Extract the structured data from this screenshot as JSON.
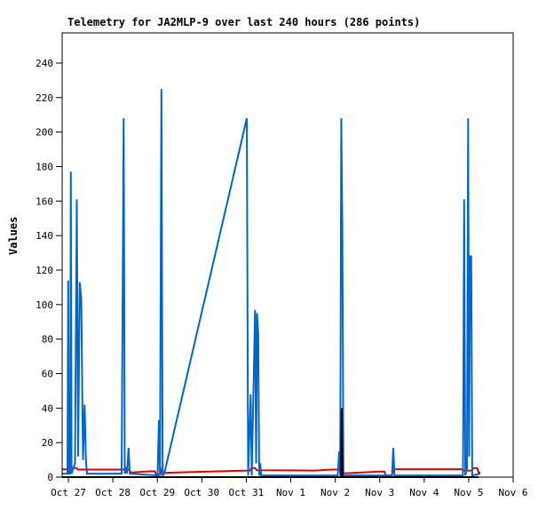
{
  "title": "Telemetry for JA2MLP-9 over last 240 hours (286 points)",
  "colors": {
    "blue_series": "#0066cc",
    "red_series": "#e60000",
    "black_series": "#000000",
    "axis": "#000000",
    "background": "#ffffff"
  },
  "chart_data": {
    "type": "line",
    "title": "Telemetry for JA2MLP-9 over last 240 hours (286 points)",
    "xlabel": "",
    "ylabel": "Values",
    "grid": false,
    "legend": "none",
    "ylim": [
      0,
      257.5
    ],
    "xlim_days": [
      -0.14,
      10.0
    ],
    "yticks": [
      0,
      20,
      40,
      60,
      80,
      100,
      120,
      140,
      160,
      180,
      200,
      220,
      240
    ],
    "xticks": [
      {
        "day": 0,
        "label": "Oct 27"
      },
      {
        "day": 1,
        "label": "Oct 28"
      },
      {
        "day": 2,
        "label": "Oct 29"
      },
      {
        "day": 3,
        "label": "Oct 30"
      },
      {
        "day": 4,
        "label": "Oct 31"
      },
      {
        "day": 5,
        "label": "Nov 1"
      },
      {
        "day": 6,
        "label": "Nov 2"
      },
      {
        "day": 7,
        "label": "Nov 3"
      },
      {
        "day": 8,
        "label": "Nov 4"
      },
      {
        "day": 9,
        "label": "Nov 5"
      },
      {
        "day": 10,
        "label": "Nov 6"
      }
    ],
    "series": [
      {
        "name": "red-series",
        "color": "#e60000",
        "width": 2,
        "points": [
          [
            -0.14,
            4.5
          ],
          [
            0.08,
            4.5
          ],
          [
            0.1,
            5.3
          ],
          [
            0.18,
            5.3
          ],
          [
            0.21,
            4.4
          ],
          [
            1.357,
            4.4
          ],
          [
            1.407,
            2.7
          ],
          [
            1.557,
            2.9
          ],
          [
            1.856,
            3.4
          ],
          [
            1.946,
            3.4
          ],
          [
            1.976,
            1.2
          ],
          [
            2.066,
            1.3
          ],
          [
            2.106,
            5.0
          ],
          [
            2.136,
            2.4
          ],
          [
            2.455,
            2.7
          ],
          [
            3.253,
            3.3
          ],
          [
            3.892,
            3.7
          ],
          [
            4.082,
            3.8
          ],
          [
            4.112,
            5.2
          ],
          [
            4.202,
            5.2
          ],
          [
            4.232,
            4.0
          ],
          [
            4.85,
            3.9
          ],
          [
            5.549,
            3.8
          ],
          [
            5.928,
            4.4
          ],
          [
            6.128,
            4.4
          ],
          [
            6.178,
            2.2
          ],
          [
            6.647,
            2.8
          ],
          [
            7.006,
            3.2
          ],
          [
            7.106,
            3.2
          ],
          [
            7.136,
            1.1
          ],
          [
            7.275,
            1.0
          ],
          [
            7.305,
            4.6
          ],
          [
            8.842,
            4.6
          ],
          [
            8.892,
            3.8
          ],
          [
            9.072,
            3.8
          ],
          [
            9.102,
            5.2
          ],
          [
            9.192,
            5.2
          ],
          [
            9.222,
            2.7
          ],
          [
            9.261,
            2.7
          ]
        ]
      },
      {
        "name": "blue-series",
        "color": "#0066cc",
        "width": 2,
        "points": [
          [
            -0.14,
            2
          ],
          [
            -0.04,
            2
          ],
          [
            -0.02,
            2
          ],
          [
            -0.005,
            114
          ],
          [
            0.01,
            2
          ],
          [
            0.04,
            2
          ],
          [
            0.056,
            177
          ],
          [
            0.072,
            2
          ],
          [
            0.15,
            8
          ],
          [
            0.19,
            161
          ],
          [
            0.22,
            12
          ],
          [
            0.256,
            113
          ],
          [
            0.289,
            104
          ],
          [
            0.329,
            10
          ],
          [
            0.365,
            42
          ],
          [
            0.395,
            10
          ],
          [
            0.419,
            2
          ],
          [
            1.198,
            2
          ],
          [
            1.243,
            208
          ],
          [
            1.268,
            2
          ],
          [
            1.297,
            6
          ],
          [
            1.317,
            2
          ],
          [
            1.353,
            17
          ],
          [
            1.381,
            2
          ],
          [
            2.006,
            1
          ],
          [
            2.036,
            33
          ],
          [
            2.06,
            1
          ],
          [
            2.092,
            225
          ],
          [
            2.12,
            1
          ],
          [
            2.156,
            2
          ],
          [
            4.012,
            208
          ],
          [
            4.042,
            1
          ],
          [
            4.098,
            48
          ],
          [
            4.124,
            1
          ],
          [
            4.198,
            97
          ],
          [
            4.222,
            8
          ],
          [
            4.242,
            95
          ],
          [
            4.267,
            84
          ],
          [
            4.291,
            1
          ],
          [
            4.315,
            8
          ],
          [
            4.335,
            1
          ],
          [
            6.058,
            1
          ],
          [
            6.088,
            15
          ],
          [
            6.112,
            1
          ],
          [
            6.136,
            208
          ],
          [
            6.16,
            145
          ],
          [
            6.184,
            1
          ],
          [
            7.275,
            1
          ],
          [
            7.305,
            17
          ],
          [
            7.331,
            1
          ],
          [
            8.872,
            1
          ],
          [
            8.898,
            161
          ],
          [
            8.924,
            1
          ],
          [
            8.962,
            5
          ],
          [
            8.988,
            208
          ],
          [
            9.01,
            12
          ],
          [
            9.03,
            128
          ],
          [
            9.058,
            128
          ],
          [
            9.08,
            1
          ],
          [
            9.261,
            2
          ]
        ]
      },
      {
        "name": "black-series",
        "color": "#000000",
        "width": 2,
        "points": [
          [
            -0.14,
            0
          ],
          [
            6.128,
            0
          ],
          [
            6.146,
            40
          ],
          [
            6.164,
            0
          ],
          [
            9.222,
            0
          ]
        ]
      }
    ]
  }
}
